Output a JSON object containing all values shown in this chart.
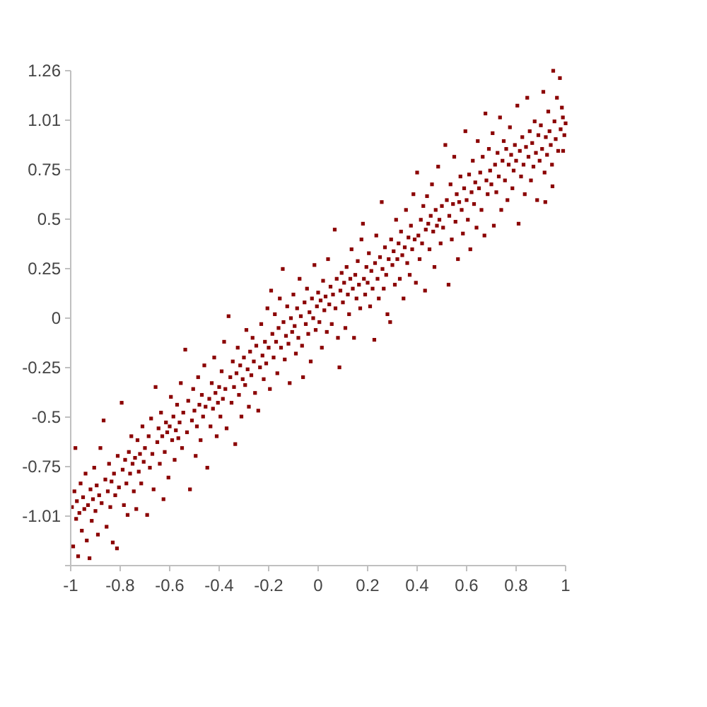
{
  "chart_data": {
    "type": "scatter",
    "color": "#8b0000",
    "marker": "square",
    "xlim": [
      -1,
      1
    ],
    "ylim": [
      -1.2575,
      1.2575
    ],
    "xticks": [
      -1,
      -0.8,
      -0.6,
      -0.4,
      -0.2,
      0,
      0.2,
      0.4,
      0.6,
      0.8,
      1
    ],
    "yticks": [
      {
        "value": -1.2575,
        "label": null
      },
      {
        "value": -1.006,
        "label": "-1.01"
      },
      {
        "value": -0.7545,
        "label": "-0.75"
      },
      {
        "value": -0.503,
        "label": "-0.5"
      },
      {
        "value": -0.2515,
        "label": "-0.25"
      },
      0,
      {
        "value": 0.2515,
        "label": "0.25"
      },
      {
        "value": 0.503,
        "label": "0.5"
      },
      {
        "value": 0.7545,
        "label": "0.75"
      },
      {
        "value": 1.006,
        "label": "1.01"
      },
      {
        "value": 1.2575,
        "label": "1.26"
      }
    ],
    "x": [
      -0.995,
      -0.99,
      -0.985,
      -0.981,
      -0.978,
      -0.975,
      -0.97,
      -0.965,
      -0.96,
      -0.955,
      -0.95,
      -0.945,
      -0.94,
      -0.935,
      -0.93,
      -0.924,
      -0.92,
      -0.915,
      -0.91,
      -0.905,
      -0.9,
      -0.895,
      -0.89,
      -0.885,
      -0.88,
      -0.875,
      -0.867,
      -0.86,
      -0.855,
      -0.85,
      -0.845,
      -0.84,
      -0.835,
      -0.83,
      -0.825,
      -0.82,
      -0.813,
      -0.81,
      -0.805,
      -0.794,
      -0.79,
      -0.785,
      -0.78,
      -0.775,
      -0.77,
      -0.765,
      -0.76,
      -0.755,
      -0.75,
      -0.745,
      -0.74,
      -0.735,
      -0.73,
      -0.725,
      -0.72,
      -0.715,
      -0.71,
      -0.705,
      -0.7,
      -0.691,
      -0.685,
      -0.68,
      -0.675,
      -0.67,
      -0.665,
      -0.657,
      -0.65,
      -0.645,
      -0.64,
      -0.635,
      -0.63,
      -0.625,
      -0.62,
      -0.615,
      -0.61,
      -0.605,
      -0.6,
      -0.595,
      -0.59,
      -0.585,
      -0.58,
      -0.575,
      -0.57,
      -0.565,
      -0.56,
      -0.555,
      -0.55,
      -0.545,
      -0.537,
      -0.53,
      -0.525,
      -0.518,
      -0.51,
      -0.505,
      -0.5,
      -0.495,
      -0.49,
      -0.485,
      -0.48,
      -0.475,
      -0.47,
      -0.465,
      -0.46,
      -0.455,
      -0.448,
      -0.44,
      -0.435,
      -0.43,
      -0.425,
      -0.42,
      -0.415,
      -0.41,
      -0.405,
      -0.4,
      -0.395,
      -0.39,
      -0.385,
      -0.38,
      -0.375,
      -0.37,
      -0.362,
      -0.355,
      -0.35,
      -0.345,
      -0.34,
      -0.335,
      -0.33,
      -0.325,
      -0.32,
      -0.315,
      -0.31,
      -0.305,
      -0.3,
      -0.295,
      -0.29,
      -0.285,
      -0.28,
      -0.275,
      -0.27,
      -0.265,
      -0.26,
      -0.255,
      -0.25,
      -0.242,
      -0.235,
      -0.23,
      -0.225,
      -0.22,
      -0.215,
      -0.21,
      -0.205,
      -0.2,
      -0.195,
      -0.19,
      -0.185,
      -0.18,
      -0.175,
      -0.17,
      -0.165,
      -0.16,
      -0.155,
      -0.15,
      -0.143,
      -0.14,
      -0.135,
      -0.13,
      -0.125,
      -0.12,
      -0.115,
      -0.11,
      -0.105,
      -0.1,
      -0.095,
      -0.09,
      -0.085,
      -0.08,
      -0.075,
      -0.07,
      -0.065,
      -0.061,
      -0.055,
      -0.05,
      -0.045,
      -0.04,
      -0.035,
      -0.03,
      -0.025,
      -0.02,
      -0.015,
      -0.01,
      -0.005,
      0.0,
      0.005,
      0.01,
      0.015,
      0.02,
      0.025,
      0.03,
      0.035,
      0.04,
      0.045,
      0.05,
      0.055,
      0.06,
      0.067,
      0.07,
      0.075,
      0.08,
      0.086,
      0.09,
      0.095,
      0.1,
      0.105,
      0.11,
      0.115,
      0.12,
      0.125,
      0.13,
      0.135,
      0.14,
      0.145,
      0.15,
      0.155,
      0.16,
      0.165,
      0.17,
      0.175,
      0.181,
      0.185,
      0.19,
      0.195,
      0.2,
      0.205,
      0.21,
      0.215,
      0.22,
      0.227,
      0.23,
      0.235,
      0.24,
      0.245,
      0.25,
      0.257,
      0.26,
      0.265,
      0.27,
      0.275,
      0.28,
      0.285,
      0.291,
      0.295,
      0.3,
      0.305,
      0.31,
      0.315,
      0.32,
      0.325,
      0.33,
      0.335,
      0.34,
      0.345,
      0.35,
      0.355,
      0.36,
      0.365,
      0.37,
      0.375,
      0.38,
      0.385,
      0.39,
      0.395,
      0.4,
      0.405,
      0.41,
      0.415,
      0.42,
      0.425,
      0.432,
      0.435,
      0.44,
      0.445,
      0.45,
      0.455,
      0.46,
      0.465,
      0.47,
      0.475,
      0.48,
      0.485,
      0.49,
      0.495,
      0.5,
      0.505,
      0.514,
      0.52,
      0.527,
      0.53,
      0.535,
      0.54,
      0.545,
      0.55,
      0.555,
      0.56,
      0.565,
      0.57,
      0.575,
      0.58,
      0.585,
      0.59,
      0.595,
      0.6,
      0.605,
      0.61,
      0.615,
      0.62,
      0.625,
      0.63,
      0.635,
      0.64,
      0.645,
      0.65,
      0.655,
      0.66,
      0.665,
      0.672,
      0.676,
      0.68,
      0.685,
      0.69,
      0.695,
      0.7,
      0.705,
      0.71,
      0.715,
      0.72,
      0.725,
      0.73,
      0.735,
      0.74,
      0.745,
      0.75,
      0.755,
      0.76,
      0.765,
      0.77,
      0.775,
      0.78,
      0.785,
      0.79,
      0.795,
      0.8,
      0.805,
      0.81,
      0.815,
      0.82,
      0.825,
      0.83,
      0.835,
      0.84,
      0.845,
      0.85,
      0.855,
      0.86,
      0.865,
      0.87,
      0.875,
      0.88,
      0.885,
      0.89,
      0.895,
      0.9,
      0.905,
      0.91,
      0.915,
      0.918,
      0.92,
      0.925,
      0.93,
      0.935,
      0.94,
      0.945,
      0.947,
      0.95,
      0.955,
      0.96,
      0.965,
      0.97,
      0.977,
      0.98,
      0.985,
      0.989,
      0.99,
      0.995,
      1.0
    ],
    "values": [
      -0.96,
      -1.16,
      -0.88,
      -0.66,
      -1.02,
      -0.93,
      -1.21,
      -0.99,
      -0.84,
      -1.08,
      -0.91,
      -0.97,
      -0.79,
      -1.13,
      -0.95,
      -1.22,
      -0.87,
      -1.03,
      -0.92,
      -0.76,
      -0.98,
      -0.85,
      -1.1,
      -0.9,
      -0.66,
      -0.94,
      -0.52,
      -0.82,
      -1.06,
      -0.88,
      -0.74,
      -0.96,
      -0.83,
      -1.14,
      -0.79,
      -0.9,
      -1.17,
      -0.7,
      -0.86,
      -0.43,
      -0.77,
      -0.95,
      -0.72,
      -0.84,
      -1.0,
      -0.68,
      -0.79,
      -0.6,
      -0.74,
      -0.88,
      -0.71,
      -0.97,
      -0.62,
      -0.78,
      -0.69,
      -0.84,
      -0.55,
      -0.73,
      -0.66,
      -1.0,
      -0.6,
      -0.76,
      -0.51,
      -0.69,
      -0.87,
      -0.35,
      -0.63,
      -0.56,
      -0.74,
      -0.48,
      -0.6,
      -0.92,
      -0.68,
      -0.53,
      -0.58,
      -0.81,
      -0.55,
      -0.4,
      -0.62,
      -0.5,
      -0.72,
      -0.57,
      -0.44,
      -0.61,
      -0.53,
      -0.33,
      -0.66,
      -0.48,
      -0.16,
      -0.58,
      -0.42,
      -0.87,
      -0.52,
      -0.36,
      -0.47,
      -0.7,
      -0.55,
      -0.3,
      -0.44,
      -0.62,
      -0.39,
      -0.5,
      -0.24,
      -0.45,
      -0.76,
      -0.41,
      -0.55,
      -0.33,
      -0.46,
      -0.2,
      -0.38,
      -0.6,
      -0.43,
      -0.35,
      -0.5,
      -0.27,
      -0.41,
      -0.12,
      -0.36,
      -0.56,
      0.01,
      -0.3,
      -0.43,
      -0.22,
      -0.35,
      -0.64,
      -0.28,
      -0.15,
      -0.39,
      -0.24,
      -0.5,
      -0.31,
      -0.2,
      -0.34,
      -0.06,
      -0.26,
      -0.45,
      -0.17,
      -0.29,
      -0.1,
      -0.22,
      -0.38,
      -0.14,
      -0.47,
      -0.25,
      -0.03,
      -0.19,
      -0.31,
      -0.12,
      -0.23,
      0.05,
      -0.15,
      -0.36,
      0.14,
      -0.08,
      -0.2,
      0.02,
      -0.12,
      -0.28,
      -0.05,
      0.1,
      -0.15,
      0.25,
      -0.02,
      -0.21,
      -0.09,
      0.06,
      -0.13,
      -0.33,
      0.0,
      -0.07,
      0.12,
      -0.04,
      -0.18,
      0.05,
      -0.1,
      0.2,
      0.01,
      -0.14,
      -0.3,
      0.08,
      -0.03,
      0.15,
      -0.08,
      0.03,
      -0.22,
      0.1,
      0.0,
      0.27,
      -0.06,
      0.06,
      0.13,
      -0.02,
      0.09,
      -0.15,
      0.19,
      0.04,
      0.11,
      -0.07,
      0.3,
      0.07,
      0.16,
      -0.03,
      0.12,
      0.45,
      0.05,
      0.2,
      -0.1,
      -0.25,
      0.14,
      0.23,
      0.08,
      0.18,
      -0.05,
      0.26,
      0.12,
      0.02,
      0.2,
      0.35,
      0.15,
      -0.1,
      0.22,
      0.1,
      0.29,
      0.17,
      0.05,
      0.4,
      0.48,
      0.2,
      0.12,
      0.26,
      0.18,
      0.33,
      0.06,
      0.24,
      0.15,
      -0.11,
      0.28,
      0.42,
      0.2,
      0.1,
      0.31,
      0.59,
      0.25,
      0.15,
      0.36,
      0.22,
      0.02,
      0.3,
      -0.02,
      0.4,
      0.27,
      0.34,
      0.17,
      0.5,
      0.3,
      0.38,
      0.2,
      0.44,
      0.32,
      0.1,
      0.36,
      0.55,
      0.28,
      0.41,
      0.22,
      0.47,
      0.35,
      0.63,
      0.4,
      0.18,
      0.74,
      0.42,
      0.3,
      0.5,
      0.38,
      0.57,
      0.14,
      0.45,
      0.62,
      0.48,
      0.35,
      0.52,
      0.68,
      0.44,
      0.26,
      0.55,
      0.47,
      0.77,
      0.5,
      0.38,
      0.57,
      0.46,
      0.88,
      0.6,
      0.17,
      0.52,
      0.68,
      0.4,
      0.58,
      0.82,
      0.49,
      0.63,
      0.3,
      0.59,
      0.72,
      0.55,
      0.43,
      0.66,
      0.95,
      0.6,
      0.5,
      0.73,
      0.35,
      0.64,
      0.8,
      0.58,
      0.69,
      0.46,
      0.9,
      0.66,
      0.74,
      0.55,
      0.82,
      0.42,
      1.04,
      0.7,
      0.63,
      0.86,
      0.75,
      0.68,
      0.94,
      0.47,
      0.78,
      0.64,
      0.84,
      0.72,
      1.02,
      0.55,
      0.8,
      0.9,
      0.7,
      0.86,
      0.6,
      0.78,
      0.97,
      0.83,
      0.66,
      0.75,
      0.88,
      0.8,
      1.08,
      0.48,
      0.85,
      0.72,
      0.92,
      0.78,
      0.63,
      0.87,
      1.12,
      0.82,
      0.95,
      0.7,
      0.89,
      0.77,
      1.0,
      0.84,
      0.6,
      0.93,
      0.8,
      0.98,
      0.86,
      1.15,
      0.74,
      0.59,
      0.92,
      0.83,
      1.05,
      0.95,
      0.88,
      0.78,
      0.67,
      1.257,
      1.0,
      0.91,
      1.12,
      0.85,
      1.22,
      0.96,
      1.07,
      1.02,
      0.85,
      0.93,
      0.99
    ]
  }
}
